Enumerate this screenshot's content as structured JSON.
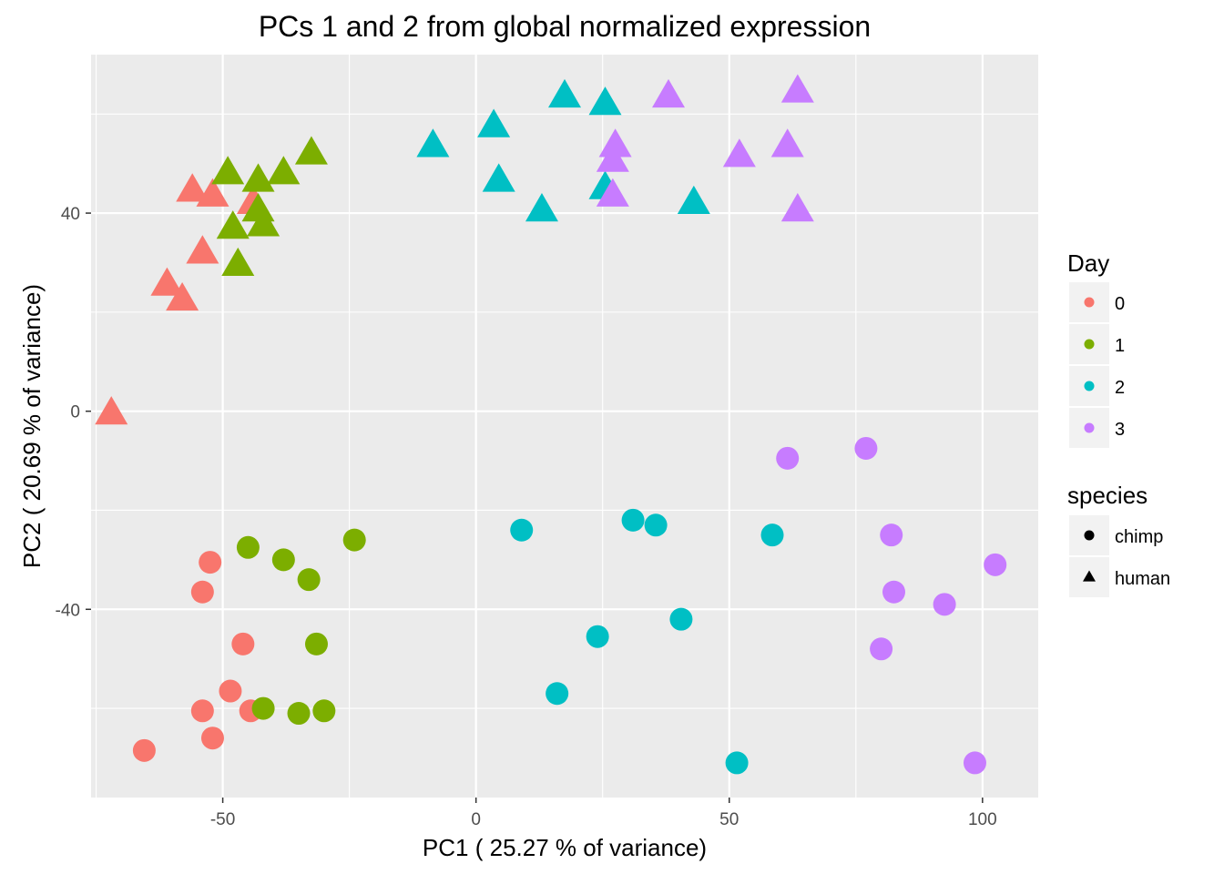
{
  "chart_data": {
    "type": "scatter",
    "title": "PCs 1 and 2 from global normalized expression",
    "xlabel": "PC1 ( 25.27 % of variance)",
    "ylabel": "PC2 ( 20.69 % of variance)",
    "xlim": [
      -76,
      111
    ],
    "ylim": [
      -78,
      72
    ],
    "x_ticks": [
      -50,
      0,
      50,
      100
    ],
    "x_tick_labels": [
      "-50",
      "0",
      "50",
      "100"
    ],
    "y_ticks": [
      -40,
      0,
      40
    ],
    "y_tick_labels": [
      "-40",
      "0",
      "40"
    ],
    "grid": true,
    "legend_placement": "right",
    "colors": {
      "0": "#F8766D",
      "1": "#7CAE00",
      "2": "#00BFC4",
      "3": "#C77CFF"
    },
    "legend": {
      "color": {
        "title": "Day",
        "entries": [
          "0",
          "1",
          "2",
          "3"
        ]
      },
      "shape": {
        "title": "species",
        "entries": [
          "chimp",
          "human"
        ]
      }
    },
    "series": [
      {
        "day": "0",
        "species": "chimp",
        "points": [
          [
            -52.5,
            -30.5
          ],
          [
            -54,
            -36.5
          ],
          [
            -46,
            -47
          ],
          [
            -48.5,
            -56.5
          ],
          [
            -54,
            -60.5
          ],
          [
            -44.5,
            -60.5
          ],
          [
            -52,
            -66
          ],
          [
            -65.5,
            -68.5
          ]
        ]
      },
      {
        "day": "1",
        "species": "chimp",
        "points": [
          [
            -45,
            -27.5
          ],
          [
            -24,
            -26
          ],
          [
            -38,
            -30
          ],
          [
            -33,
            -34
          ],
          [
            -31.5,
            -47
          ],
          [
            -42,
            -60
          ],
          [
            -35,
            -61
          ],
          [
            -30,
            -60.5
          ]
        ]
      },
      {
        "day": "2",
        "species": "chimp",
        "points": [
          [
            9,
            -24
          ],
          [
            31,
            -22
          ],
          [
            35.5,
            -23
          ],
          [
            58.5,
            -25
          ],
          [
            24,
            -45.5
          ],
          [
            40.5,
            -42
          ],
          [
            16,
            -57
          ],
          [
            51.5,
            -71
          ]
        ]
      },
      {
        "day": "3",
        "species": "chimp",
        "points": [
          [
            61.5,
            -9.5
          ],
          [
            77,
            -7.5
          ],
          [
            82,
            -25
          ],
          [
            102.5,
            -31
          ],
          [
            82.5,
            -36.5
          ],
          [
            92.5,
            -39
          ],
          [
            80,
            -48
          ],
          [
            98.5,
            -71
          ]
        ]
      },
      {
        "day": "0",
        "species": "human",
        "points": [
          [
            -56,
            44.5
          ],
          [
            -52,
            43.5
          ],
          [
            -44,
            42
          ],
          [
            -54,
            32
          ],
          [
            -61,
            25.5
          ],
          [
            -58,
            22.5
          ],
          [
            -72,
            -0.5
          ]
        ]
      },
      {
        "day": "1",
        "species": "human",
        "points": [
          [
            -49,
            48
          ],
          [
            -43,
            46.5
          ],
          [
            -38,
            48
          ],
          [
            -32.5,
            52
          ],
          [
            -43,
            40.5
          ],
          [
            -48,
            37
          ],
          [
            -42,
            37.5
          ],
          [
            -47,
            29.5
          ]
        ]
      },
      {
        "day": "2",
        "species": "human",
        "points": [
          [
            17.5,
            63.5
          ],
          [
            25.5,
            62
          ],
          [
            3.5,
            57.5
          ],
          [
            -8.5,
            53.5
          ],
          [
            4.5,
            46.5
          ],
          [
            25.5,
            45
          ],
          [
            13,
            40.5
          ],
          [
            43,
            42
          ]
        ]
      },
      {
        "day": "3",
        "species": "human",
        "points": [
          [
            38,
            63.5
          ],
          [
            63.5,
            64.5
          ],
          [
            27.5,
            53.5
          ],
          [
            27,
            50.5
          ],
          [
            52,
            51.5
          ],
          [
            61.5,
            53.5
          ],
          [
            27,
            43.5
          ],
          [
            63.5,
            40.5
          ]
        ]
      }
    ]
  }
}
